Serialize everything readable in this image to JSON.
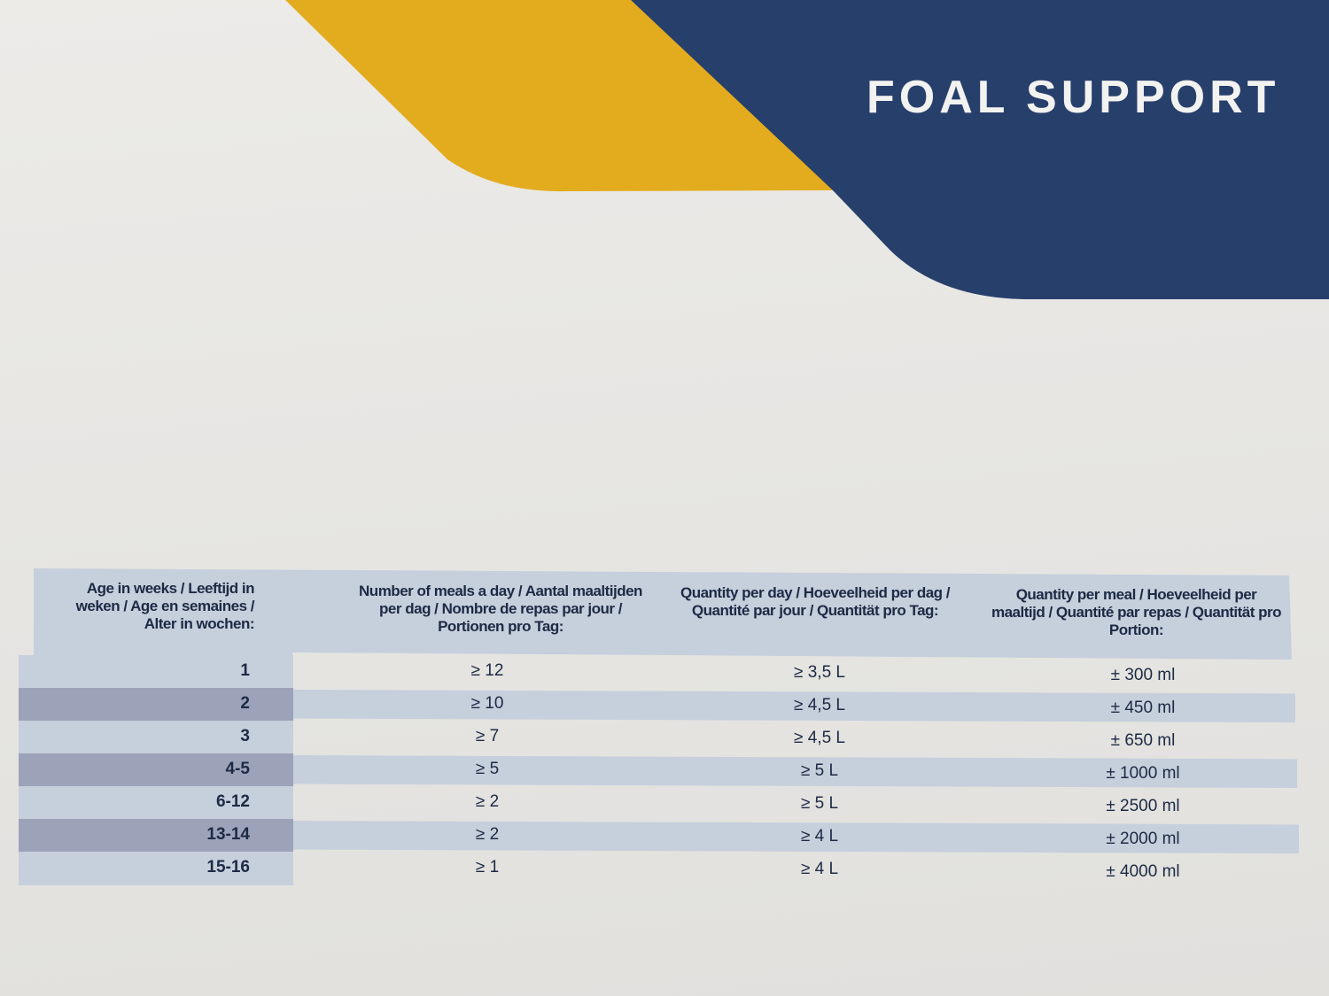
{
  "brand": {
    "title": "FOAL SUPPORT",
    "colors": {
      "navy": "#273f6b",
      "yellow": "#e3ac1f",
      "paper": "#e8e7e4",
      "table_light": "#c6cfdc",
      "table_dark": "#9ca3b9"
    }
  },
  "table": {
    "headers": [
      "Age in weeks / Leeftijd in weken / Age en semaines / Alter in wochen:",
      "Number of meals a day / Aantal maaltijden per dag / Nombre de repas par jour / Portionen pro Tag:",
      "Quantity per day / Hoeveelheid per dag / Quantité par jour / Quantität pro Tag:",
      "Quantity per meal / Hoeveelheid per maaltijd / Quantité par repas / Quantität pro Portion:"
    ],
    "rows": [
      [
        "1",
        "≥ 12",
        "≥ 3,5 L",
        "± 300 ml"
      ],
      [
        "2",
        "≥ 10",
        "≥ 4,5 L",
        "± 450 ml"
      ],
      [
        "3",
        "≥ 7",
        "≥ 4,5 L",
        "± 650 ml"
      ],
      [
        "4-5",
        "≥ 5",
        "≥ 5 L",
        "± 1000 ml"
      ],
      [
        "6-12",
        "≥ 2",
        "≥ 5 L",
        "± 2500 ml"
      ],
      [
        "13-14",
        "≥ 2",
        "≥ 4 L",
        "± 2000 ml"
      ],
      [
        "15-16",
        "≥ 1",
        "≥ 4 L",
        "± 4000 ml"
      ]
    ]
  }
}
